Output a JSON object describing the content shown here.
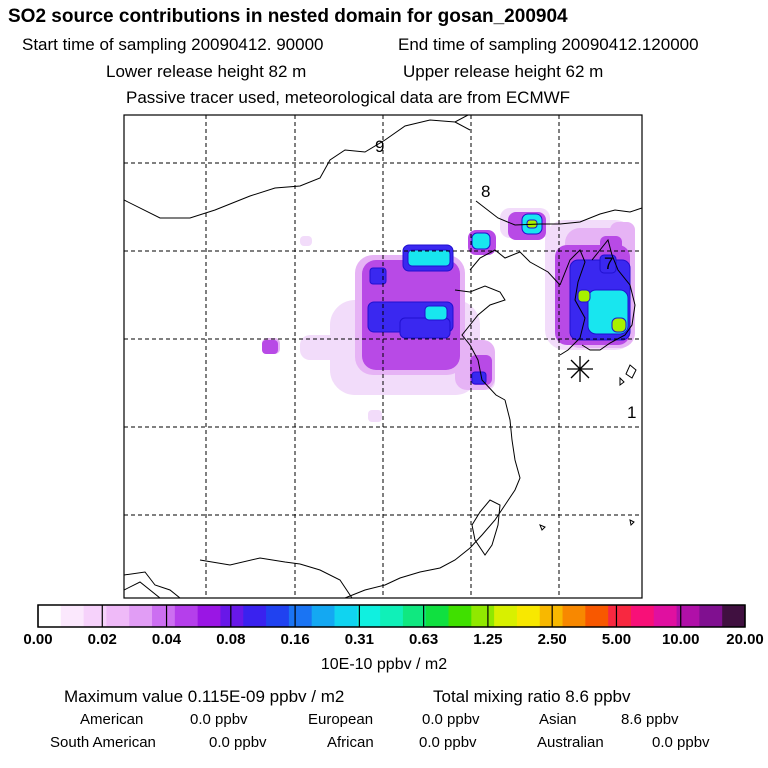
{
  "header": {
    "title": "SO2 source contributions in nested domain for gosan_200904",
    "start_label": "Start time of sampling 20090412. 90000",
    "end_label": "End time of sampling 20090412.120000",
    "lower_label": "Lower release height   82 m",
    "upper_label": "Upper release height   62 m",
    "tracer_note": "Passive tracer used, meteorological data are from ECMWF"
  },
  "map": {
    "region_labels": [
      "9",
      "8",
      "7",
      "1"
    ],
    "receptor_marker": "asterisk-icon",
    "plume_colors": {
      "faint": "#f2dcfa",
      "light": "#e6b3f5",
      "mid": "#b84ae6",
      "blue": "#3a28f0",
      "cyan": "#18e6ef",
      "green": "#a8f000"
    }
  },
  "colorbar": {
    "colors": [
      "#ffffff",
      "#fbe8fd",
      "#f6d2fb",
      "#efbaf8",
      "#e19df5",
      "#cc6ff1",
      "#b53feb",
      "#9a16e4",
      "#6818e8",
      "#3a22ef",
      "#2042f0",
      "#1a74f3",
      "#14a8f2",
      "#10d4f0",
      "#10f0e0",
      "#10f0b8",
      "#10e880",
      "#10e040",
      "#40e000",
      "#90e800",
      "#d8f000",
      "#f8e800",
      "#f8b800",
      "#f88800",
      "#f85800",
      "#f82840",
      "#f81078",
      "#e010a0",
      "#b010a8",
      "#801090",
      "#401040"
    ],
    "tick_labels": [
      "0.00",
      "0.02",
      "0.04",
      "0.08",
      "0.16",
      "0.31",
      "0.63",
      "1.25",
      "2.50",
      "5.00",
      "10.00",
      "20.00"
    ],
    "units": "10E-10 ppbv / m2"
  },
  "stats": {
    "max_value": "Maximum value  0.115E-09 ppbv / m2",
    "total_mixing": "Total mixing ratio       8.6 ppbv",
    "rows": [
      [
        {
          "name": "American",
          "value": "0.0 ppbv"
        },
        {
          "name": "European",
          "value": "0.0 ppbv"
        },
        {
          "name": "Asian",
          "value": "8.6 ppbv"
        }
      ],
      [
        {
          "name": "South American",
          "value": "0.0 ppbv"
        },
        {
          "name": "African",
          "value": "0.0 ppbv"
        },
        {
          "name": "Australian",
          "value": "0.0 ppbv"
        }
      ]
    ]
  }
}
